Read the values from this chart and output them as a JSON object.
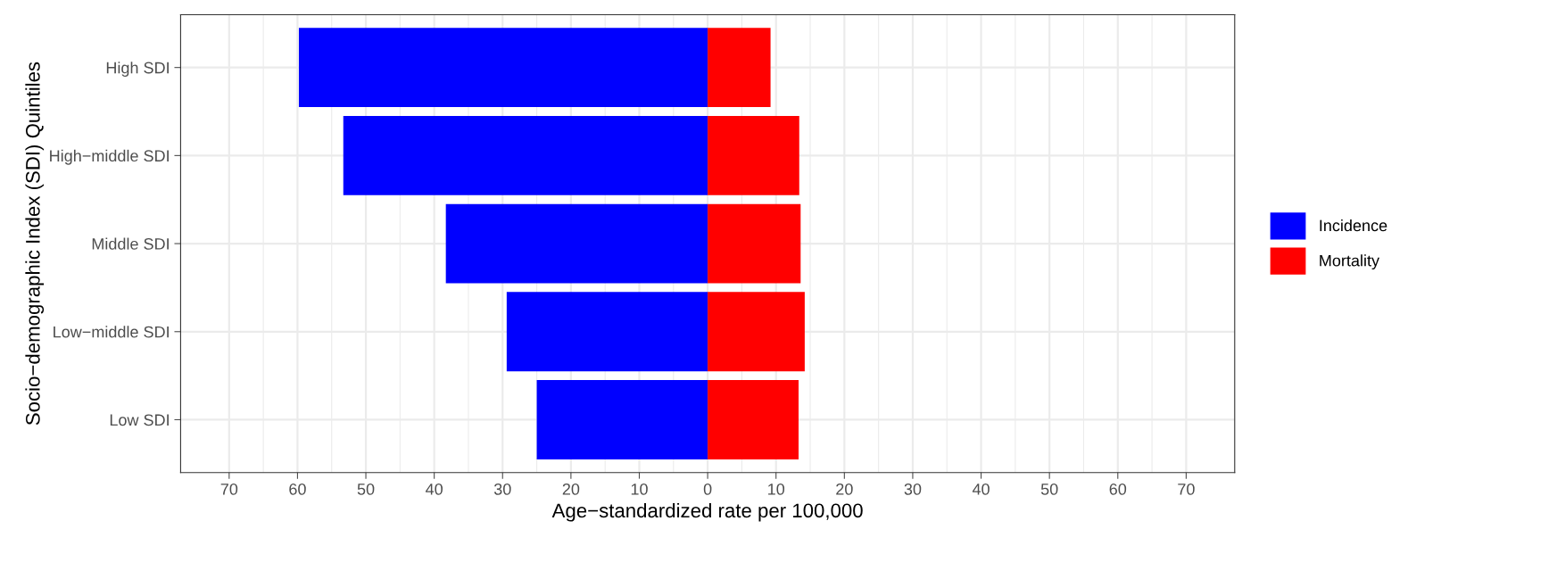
{
  "chart_data": {
    "type": "bar",
    "orientation": "horizontal",
    "xlabel": "Age−standardized rate per 100,000",
    "ylabel": "Socio−demographic Index (SDI) Quintiles",
    "categories": [
      "High SDI",
      "High−middle SDI",
      "Middle SDI",
      "Low−middle SDI",
      "Low SDI"
    ],
    "series": [
      {
        "name": "Incidence",
        "color": "#0000ff",
        "values": [
          -59.8,
          -53.3,
          -38.3,
          -29.4,
          -25.0
        ]
      },
      {
        "name": "Mortality",
        "color": "#ff0000",
        "values": [
          9.2,
          13.4,
          13.6,
          14.2,
          13.3
        ]
      }
    ],
    "xlim": [
      -77.1,
      77.1
    ],
    "xticks": [
      {
        "value": -70,
        "label": "70"
      },
      {
        "value": -60,
        "label": "60"
      },
      {
        "value": -50,
        "label": "50"
      },
      {
        "value": -40,
        "label": "40"
      },
      {
        "value": -30,
        "label": "30"
      },
      {
        "value": -20,
        "label": "20"
      },
      {
        "value": -10,
        "label": "10"
      },
      0,
      10,
      20,
      30,
      40,
      50,
      60,
      70
    ],
    "stacked": true,
    "grid": true,
    "legend": "right"
  }
}
